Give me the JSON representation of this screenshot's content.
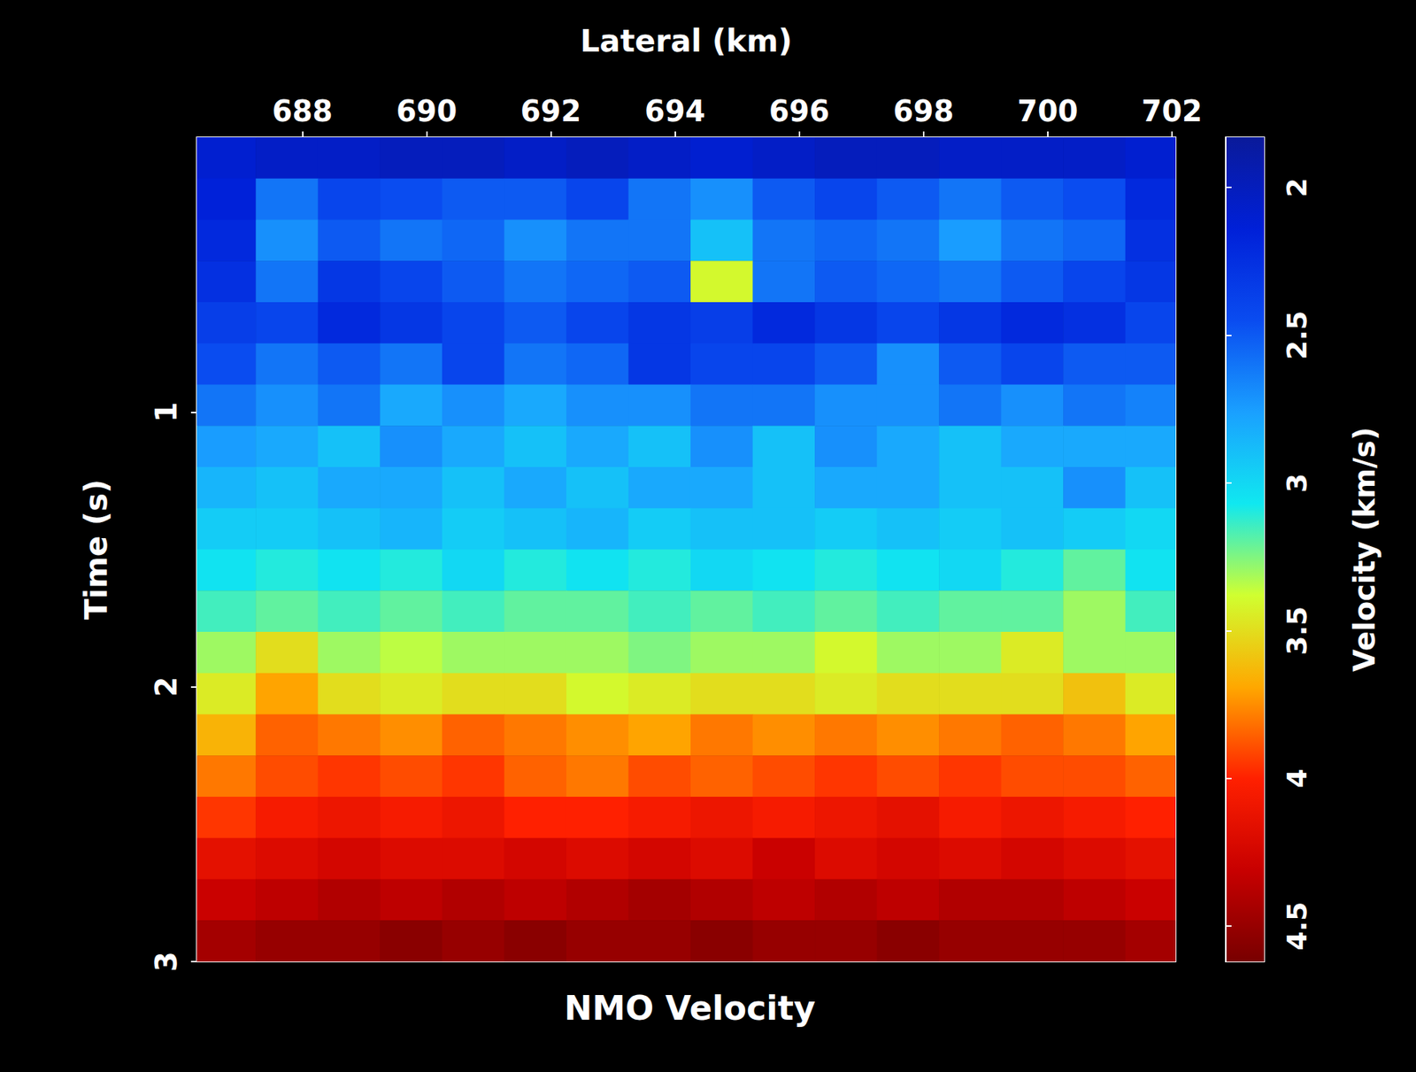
{
  "chart_data": {
    "type": "heatmap",
    "title": "NMO Velocity",
    "x_label": "Lateral (km)",
    "y_label": "Time (s)",
    "x": [
      686.75,
      687.75,
      688.75,
      689.75,
      690.75,
      691.75,
      692.75,
      693.75,
      694.75,
      695.75,
      696.75,
      697.75,
      698.75,
      699.75,
      700.75,
      701.75
    ],
    "y": [
      0.075,
      0.225,
      0.375,
      0.525,
      0.675,
      0.825,
      0.975,
      1.125,
      1.275,
      1.425,
      1.575,
      1.725,
      1.875,
      2.025,
      2.175,
      2.325,
      2.475,
      2.625,
      2.775,
      2.925
    ],
    "values": [
      [
        2.1,
        2.05,
        2.05,
        2.0,
        2.0,
        2.05,
        2.0,
        2.05,
        2.1,
        2.05,
        2.0,
        2.0,
        2.05,
        2.05,
        2.05,
        2.1
      ],
      [
        2.15,
        2.6,
        2.4,
        2.45,
        2.5,
        2.5,
        2.4,
        2.6,
        2.7,
        2.5,
        2.4,
        2.5,
        2.6,
        2.5,
        2.45,
        2.2
      ],
      [
        2.2,
        2.7,
        2.5,
        2.6,
        2.55,
        2.7,
        2.6,
        2.6,
        2.9,
        2.6,
        2.55,
        2.6,
        2.75,
        2.6,
        2.55,
        2.25
      ],
      [
        2.25,
        2.6,
        2.3,
        2.4,
        2.5,
        2.6,
        2.55,
        2.5,
        3.4,
        2.6,
        2.5,
        2.55,
        2.6,
        2.5,
        2.4,
        2.3
      ],
      [
        2.35,
        2.4,
        2.2,
        2.3,
        2.4,
        2.5,
        2.4,
        2.3,
        2.35,
        2.2,
        2.3,
        2.4,
        2.3,
        2.2,
        2.25,
        2.4
      ],
      [
        2.45,
        2.6,
        2.5,
        2.6,
        2.4,
        2.6,
        2.55,
        2.3,
        2.4,
        2.4,
        2.5,
        2.7,
        2.5,
        2.4,
        2.5,
        2.5
      ],
      [
        2.6,
        2.7,
        2.6,
        2.8,
        2.7,
        2.8,
        2.7,
        2.7,
        2.6,
        2.6,
        2.7,
        2.7,
        2.6,
        2.7,
        2.6,
        2.65
      ],
      [
        2.75,
        2.8,
        2.9,
        2.7,
        2.8,
        2.9,
        2.8,
        2.9,
        2.7,
        2.9,
        2.7,
        2.8,
        2.9,
        2.8,
        2.8,
        2.8
      ],
      [
        2.85,
        2.9,
        2.8,
        2.8,
        2.9,
        2.8,
        2.9,
        2.8,
        2.8,
        2.9,
        2.8,
        2.8,
        2.9,
        2.9,
        2.7,
        2.9
      ],
      [
        2.95,
        2.95,
        2.9,
        2.85,
        2.95,
        2.9,
        2.85,
        2.95,
        2.9,
        2.9,
        2.95,
        2.9,
        2.95,
        2.9,
        2.95,
        3.0
      ],
      [
        3.05,
        3.1,
        3.05,
        3.1,
        3.0,
        3.1,
        3.05,
        3.1,
        3.0,
        3.05,
        3.1,
        3.05,
        3.0,
        3.1,
        3.2,
        3.05
      ],
      [
        3.15,
        3.2,
        3.15,
        3.2,
        3.15,
        3.2,
        3.2,
        3.15,
        3.2,
        3.15,
        3.2,
        3.15,
        3.2,
        3.2,
        3.3,
        3.15
      ],
      [
        3.3,
        3.5,
        3.3,
        3.35,
        3.3,
        3.3,
        3.3,
        3.25,
        3.3,
        3.3,
        3.4,
        3.3,
        3.3,
        3.45,
        3.3,
        3.3
      ],
      [
        3.45,
        3.7,
        3.5,
        3.45,
        3.5,
        3.5,
        3.4,
        3.45,
        3.5,
        3.5,
        3.45,
        3.5,
        3.5,
        3.5,
        3.6,
        3.45
      ],
      [
        3.65,
        3.85,
        3.8,
        3.75,
        3.85,
        3.8,
        3.75,
        3.7,
        3.8,
        3.75,
        3.8,
        3.75,
        3.8,
        3.85,
        3.8,
        3.7
      ],
      [
        3.8,
        3.9,
        3.95,
        3.9,
        3.95,
        3.85,
        3.8,
        3.9,
        3.85,
        3.9,
        3.95,
        3.9,
        3.95,
        3.9,
        3.9,
        3.85
      ],
      [
        3.95,
        4.05,
        4.1,
        4.05,
        4.1,
        4.0,
        4.0,
        4.05,
        4.1,
        4.05,
        4.1,
        4.15,
        4.05,
        4.1,
        4.05,
        4.0
      ],
      [
        4.15,
        4.2,
        4.25,
        4.2,
        4.2,
        4.25,
        4.2,
        4.25,
        4.2,
        4.3,
        4.2,
        4.25,
        4.2,
        4.25,
        4.2,
        4.15
      ],
      [
        4.3,
        4.35,
        4.4,
        4.35,
        4.4,
        4.35,
        4.4,
        4.45,
        4.4,
        4.35,
        4.4,
        4.35,
        4.4,
        4.4,
        4.35,
        4.3
      ],
      [
        4.45,
        4.5,
        4.5,
        4.55,
        4.5,
        4.55,
        4.5,
        4.5,
        4.55,
        4.5,
        4.5,
        4.55,
        4.5,
        4.5,
        4.5,
        4.45
      ]
    ],
    "xlim": [
      686.3,
      702.06
    ],
    "xticks": [
      688,
      690,
      692,
      694,
      696,
      698,
      700,
      702
    ],
    "ylim": [
      0,
      3
    ],
    "yticks": [
      1,
      2,
      3
    ],
    "colorbar": {
      "label": "Velocity (km/s)",
      "range": [
        1.83,
        4.62
      ],
      "ticks": [
        2,
        2.5,
        3,
        3.5,
        4,
        4.5
      ]
    }
  }
}
